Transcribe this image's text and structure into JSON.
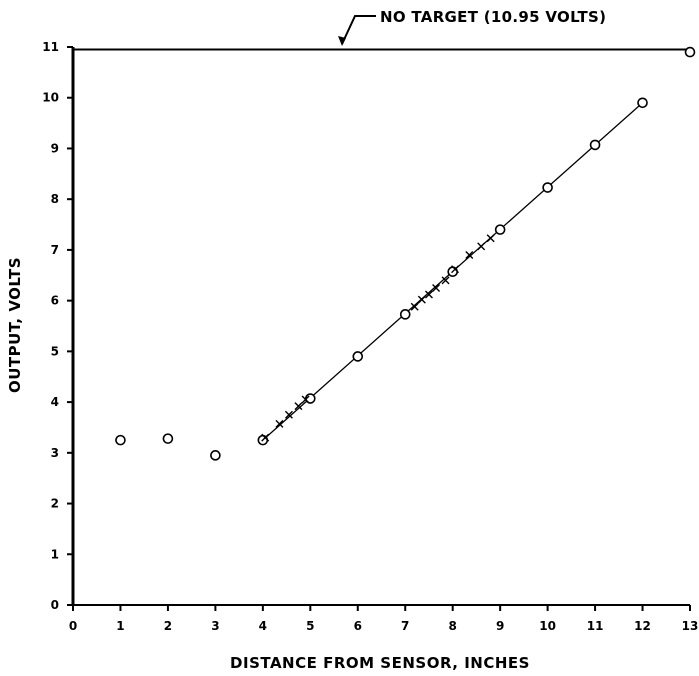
{
  "chart_data": {
    "type": "scatter",
    "title": "",
    "xlabel": "DISTANCE FROM SENSOR, INCHES",
    "ylabel": "OUTPUT, VOLTS",
    "xlim": [
      0,
      13
    ],
    "ylim": [
      0,
      11
    ],
    "xticks": [
      "0",
      "1",
      "2",
      "3",
      "4",
      "5",
      "6",
      "7",
      "8",
      "9",
      "10",
      "11",
      "12",
      "13"
    ],
    "yticks": [
      "0",
      "1",
      "2",
      "3",
      "4",
      "5",
      "6",
      "7",
      "8",
      "9",
      "10",
      "11"
    ],
    "grid": false,
    "annotation": "NO TARGET (10.95 VOLTS)",
    "reference_line": {
      "y": 10.95
    },
    "series": [
      {
        "marker": "circle",
        "x": [
          1,
          2,
          3,
          4,
          5,
          6,
          7,
          8,
          9,
          10,
          11,
          12,
          13
        ],
        "y": [
          3.25,
          3.28,
          2.95,
          3.25,
          4.07,
          4.9,
          5.73,
          6.57,
          7.4,
          8.23,
          9.07,
          9.9,
          10.9
        ]
      },
      {
        "marker": "x",
        "x": [
          4.05,
          4.35,
          4.55,
          4.75,
          4.9,
          7.2,
          7.35,
          7.5,
          7.65,
          7.85,
          8.05,
          8.35,
          8.6,
          8.8
        ],
        "y": [
          3.3,
          3.57,
          3.75,
          3.92,
          4.05,
          5.88,
          6.02,
          6.12,
          6.25,
          6.4,
          6.62,
          6.9,
          7.07,
          7.23
        ]
      },
      {
        "marker": "none",
        "x": [
          4,
          12
        ],
        "y": [
          3.25,
          9.9
        ]
      }
    ]
  }
}
